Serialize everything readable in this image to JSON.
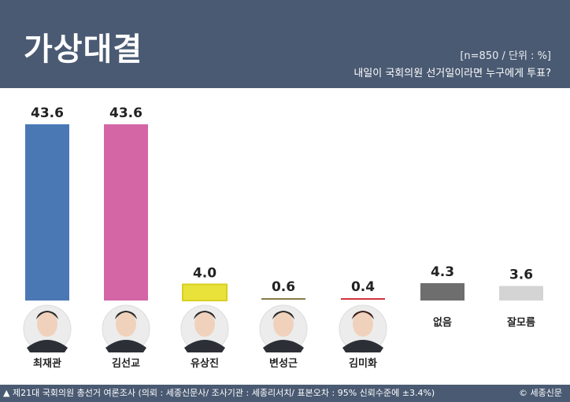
{
  "header": {
    "title": "가상대결",
    "meta": "[n=850 / 단위 : %]",
    "question": "내일이 국회의원 선거일이라면 누구에게 투표?"
  },
  "chart_data": {
    "type": "bar",
    "categories": [
      "최재관",
      "김선교",
      "유상진",
      "변성근",
      "김미화",
      "없음",
      "잘모름"
    ],
    "values": [
      43.6,
      43.6,
      4.0,
      0.6,
      0.4,
      4.3,
      3.6
    ],
    "value_labels": [
      "43.6",
      "43.6",
      "4.0",
      "0.6",
      "0.4",
      "4.3",
      "3.6"
    ],
    "colors": [
      "#4a78b5",
      "#d566a6",
      "#e8e23a",
      "#8a7a4a",
      "#d0333a",
      "#6e6e6e",
      "#d4d4d4"
    ],
    "ylim": [
      0,
      43.6
    ],
    "title": "",
    "xlabel": "",
    "ylabel": ""
  },
  "footer": {
    "source": "▲ 제21대 국회의원 총선거 여론조사 (의뢰 : 세종신문사/ 조사기관 : 세종리서치/ 표본오차 : 95% 신뢰수준에 ±3.4%)",
    "copyright": "© 세종신문"
  }
}
